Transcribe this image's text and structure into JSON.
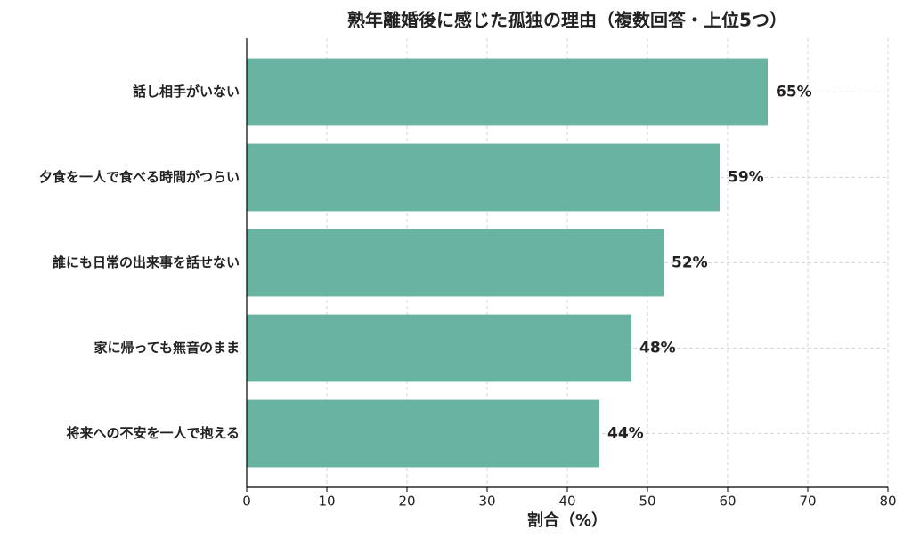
{
  "chart_data": {
    "type": "barh",
    "title": "熟年離婚後に感じた孤独の理由（複数回答・上位5つ）",
    "x_label": "割合（%）",
    "categories": [
      "話し相手がいない",
      "夕食を一人で食べる時間がつらい",
      "誰にも日常の出来事を話せない",
      "家に帰っても無音のまま",
      "将来への不安を一人で抱える"
    ],
    "values": [
      65,
      59,
      52,
      48,
      44
    ],
    "value_labels": [
      "65%",
      "59%",
      "52%",
      "48%",
      "44%"
    ],
    "color": "#69b3a2",
    "xlim": [
      0,
      80
    ],
    "xticks": [
      0,
      10,
      20,
      30,
      40,
      50,
      60,
      70,
      80
    ],
    "grid": true
  }
}
